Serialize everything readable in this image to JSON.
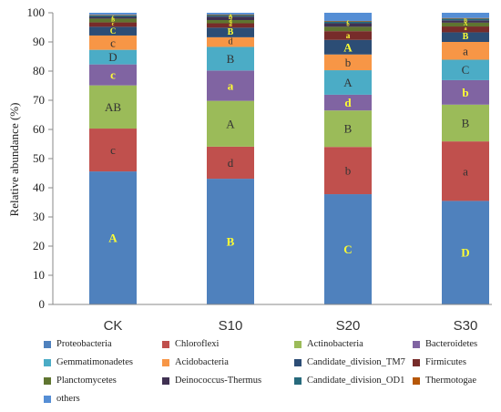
{
  "chart_data": {
    "type": "bar",
    "stacked": true,
    "ylabel": "Relative abundance (%)",
    "ylim": [
      0,
      100
    ],
    "yticks": [
      0,
      10,
      20,
      30,
      40,
      50,
      60,
      70,
      80,
      90,
      100
    ],
    "categories": [
      "CK",
      "S10",
      "S20",
      "S30"
    ],
    "legend_position": "bottom",
    "series": [
      {
        "name": "Proteobacteria",
        "color": "#4f81bd",
        "values": [
          45.6,
          43.1,
          37.8,
          35.5
        ],
        "labels": [
          "A",
          "B",
          "C",
          "D"
        ],
        "label_color": "#ffff33",
        "label_bold": true
      },
      {
        "name": "Chloroflexi",
        "color": "#c0504d",
        "values": [
          14.7,
          11.0,
          16.2,
          20.4
        ],
        "labels": [
          "c",
          "d",
          "b",
          "a"
        ],
        "label_color": "#333333"
      },
      {
        "name": "Actinobacteria",
        "color": "#9bbb59",
        "values": [
          14.8,
          15.7,
          12.5,
          12.6
        ],
        "labels": [
          "AB",
          "A",
          "B",
          "B"
        ],
        "label_color": "#333333"
      },
      {
        "name": "Bacteroidetes",
        "color": "#8064a2",
        "values": [
          7.2,
          10.4,
          5.4,
          8.4
        ],
        "labels": [
          "c",
          "a",
          "d",
          "b"
        ],
        "label_color": "#ffff33",
        "label_bold": true
      },
      {
        "name": "Gemmatimonadetes",
        "color": "#4bacc6",
        "values": [
          5.0,
          8.1,
          8.4,
          7.0
        ],
        "labels": [
          "D",
          "B",
          "A",
          "C"
        ],
        "label_color": "#333333"
      },
      {
        "name": "Acidobacteria",
        "color": "#f79646",
        "values": [
          4.9,
          3.3,
          5.4,
          6.1
        ],
        "labels": [
          "c",
          "d",
          "b",
          "a"
        ],
        "label_color": "#333333"
      },
      {
        "name": "Candidate_division_TM7",
        "color": "#2c4d75",
        "values": [
          3.0,
          3.3,
          5.0,
          3.3
        ],
        "labels": [
          "C",
          "B",
          "A",
          "B"
        ],
        "label_color": "#ffff33",
        "label_bold": true
      },
      {
        "name": "Firmicutes",
        "color": "#772c2a",
        "values": [
          1.5,
          1.5,
          3.0,
          2.0
        ],
        "labels": [
          "c",
          "d",
          "a",
          "a"
        ],
        "label_color": "#ffff33",
        "label_bold": true
      },
      {
        "name": "Planctomycetes",
        "color": "#5f7530",
        "values": [
          1.3,
          1.1,
          1.5,
          1.3
        ],
        "labels": [
          "B",
          "d",
          "",
          "A"
        ],
        "label_color": "#ffff33",
        "label_bold": true
      },
      {
        "name": "Deinococcus-Thermus",
        "color": "#403152",
        "values": [
          0.6,
          1.2,
          1.2,
          0.8
        ],
        "labels": [
          "c",
          "D",
          "b",
          "B"
        ],
        "label_color": "#ffff33",
        "label_bold": true
      },
      {
        "name": "Candidate_division_OD1",
        "color": "#276a7c",
        "values": [
          0.5,
          0.5,
          0.6,
          0.6
        ],
        "labels": [
          "",
          "a",
          "c",
          ""
        ],
        "label_color": "#ffff33",
        "label_bold": true
      },
      {
        "name": "Thermotogae",
        "color": "#b65708",
        "values": [
          0.2,
          0.2,
          0.2,
          0.2
        ],
        "labels": [
          "",
          "",
          "",
          ""
        ],
        "label_color": "#ffff33"
      },
      {
        "name": "others",
        "color": "#558ed5",
        "values": [
          0.7,
          0.6,
          2.8,
          1.8
        ],
        "labels": [
          "",
          "",
          "",
          ""
        ],
        "label_color": "#ffff33"
      }
    ]
  }
}
